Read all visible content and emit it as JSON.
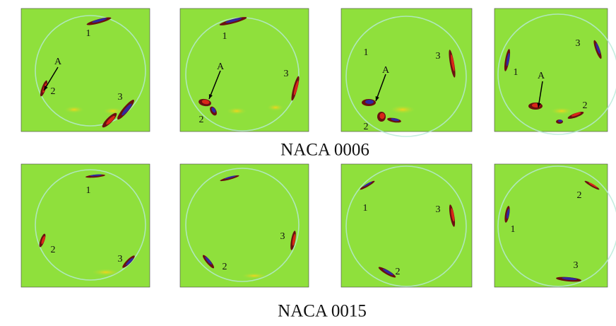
{
  "figure": {
    "rows": [
      {
        "caption": "NACA 0006",
        "panels": [
          {
            "labels": [
              "1",
              "A",
              "2",
              "3"
            ]
          },
          {
            "labels": [
              "1",
              "A",
              "3",
              "2"
            ]
          },
          {
            "labels": [
              "1",
              "A",
              "3",
              "2"
            ]
          },
          {
            "labels": [
              "3",
              "1",
              "A",
              "2"
            ]
          }
        ]
      },
      {
        "caption": "NACA 0015",
        "panels": [
          {
            "labels": [
              "1",
              "2",
              "3"
            ]
          },
          {
            "labels": [
              "3",
              "2"
            ]
          },
          {
            "labels": [
              "1",
              "3",
              "2"
            ]
          },
          {
            "labels": [
              "2",
              "1",
              "3"
            ]
          }
        ]
      }
    ]
  }
}
